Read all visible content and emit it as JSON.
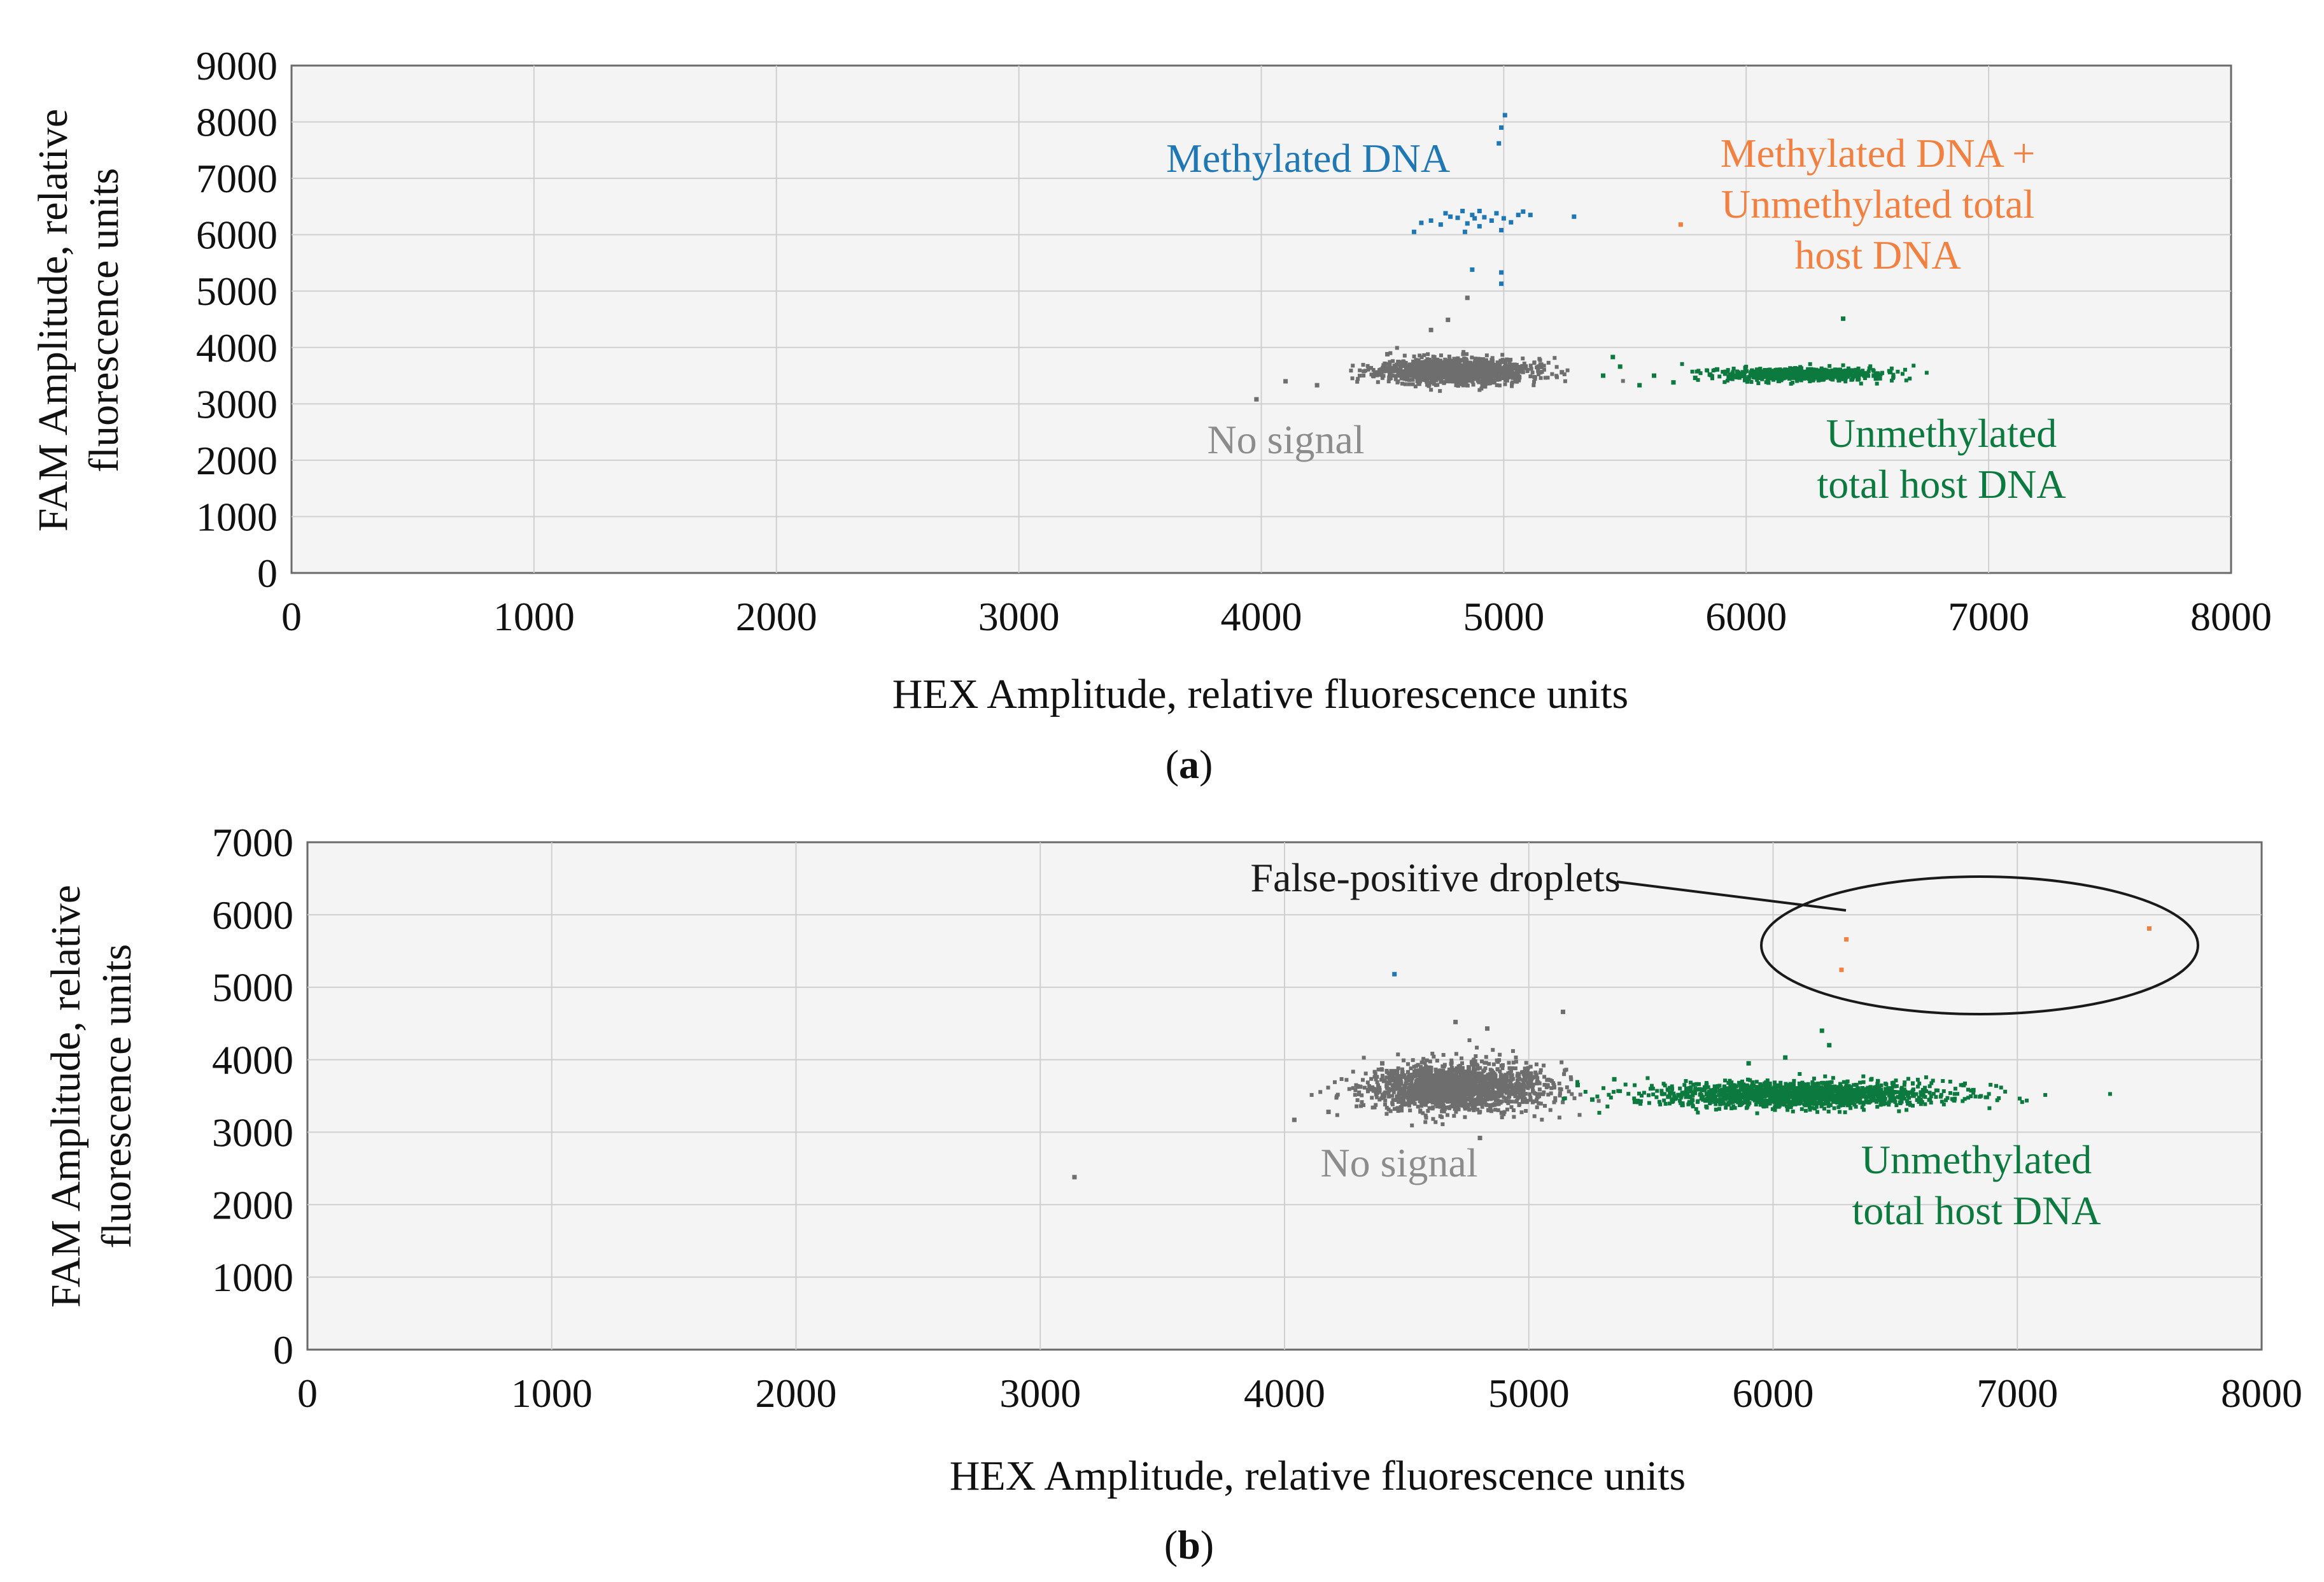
{
  "chart_data": [
    {
      "type": "scatter",
      "panel_label": "a",
      "title": "",
      "xlabel": "HEX Amplitude, relative fluorescence units",
      "ylabel_lines": [
        "FAM Amplitude, relative",
        "fluorescence units"
      ],
      "xlim": [
        0,
        8000
      ],
      "ylim": [
        0,
        9000
      ],
      "x_ticks": [
        0,
        1000,
        2000,
        3000,
        4000,
        5000,
        6000,
        7000,
        8000
      ],
      "y_ticks": [
        0,
        1000,
        2000,
        3000,
        4000,
        5000,
        6000,
        7000,
        8000,
        9000
      ],
      "x_tick_labels": [
        "0",
        "1000",
        "2000",
        "3000",
        "4000",
        "5000",
        "6000",
        "7000",
        "8000"
      ],
      "y_tick_labels": [
        "0",
        "1000",
        "2000",
        "3000",
        "4000",
        "5000",
        "6000",
        "7000",
        "8000",
        "9000"
      ],
      "grid": true,
      "series": [
        {
          "name": "No signal",
          "color": "#6e6e6e",
          "cluster": {
            "cx": 4800,
            "cy": 3580,
            "sx": 150,
            "sy": 110,
            "count": 1400
          },
          "points": [
            [
              3980,
              3080
            ],
            [
              4100,
              3400
            ],
            [
              4230,
              3330
            ],
            [
              5240,
              3560
            ],
            [
              4700,
              4310
            ],
            [
              4770,
              4490
            ],
            [
              4850,
              4880
            ],
            [
              4520,
              3880
            ]
          ]
        },
        {
          "name": "Methylated DNA",
          "color": "#1f77b4",
          "points": [
            [
              5005,
              8120
            ],
            [
              4990,
              7900
            ],
            [
              4980,
              7620
            ],
            [
              4630,
              6050
            ],
            [
              4700,
              6250
            ],
            [
              4740,
              6180
            ],
            [
              4780,
              6320
            ],
            [
              4810,
              6300
            ],
            [
              4830,
              6420
            ],
            [
              4850,
              6200
            ],
            [
              4870,
              6350
            ],
            [
              4880,
              6290
            ],
            [
              4900,
              6420
            ],
            [
              4920,
              6310
            ],
            [
              4950,
              6250
            ],
            [
              4970,
              6380
            ],
            [
              5000,
              6290
            ],
            [
              5030,
              6220
            ],
            [
              5060,
              6350
            ],
            [
              5080,
              6410
            ],
            [
              4840,
              6050
            ],
            [
              4760,
              6380
            ],
            [
              4660,
              6210
            ],
            [
              4900,
              6150
            ],
            [
              4990,
              6080
            ],
            [
              5110,
              6350
            ],
            [
              5290,
              6320
            ],
            [
              4870,
              5380
            ],
            [
              4990,
              5330
            ],
            [
              4990,
              5130
            ]
          ]
        },
        {
          "name": "Methylated DNA + Unmethylated total host DNA",
          "color": "#f28040",
          "points": [
            [
              5730,
              6180
            ]
          ]
        },
        {
          "name": "Unmethylated total host DNA",
          "color": "#0c7a3e",
          "cluster": {
            "cx": 6230,
            "cy": 3520,
            "sx": 160,
            "sy": 55,
            "count": 800
          },
          "points": [
            [
              5410,
              3500
            ],
            [
              5450,
              3830
            ],
            [
              5480,
              3660
            ],
            [
              5560,
              3330
            ],
            [
              5620,
              3500
            ],
            [
              5700,
              3380
            ],
            [
              5790,
              3460
            ],
            [
              5850,
              3520
            ],
            [
              5880,
              3610
            ],
            [
              6400,
              4510
            ]
          ]
        }
      ],
      "annotations": [
        {
          "text": "Methylated DNA",
          "color": "#1f77b4"
        },
        {
          "lines": [
            "Methylated DNA +",
            "Unmethylated total",
            "host DNA"
          ],
          "color": "#f28040"
        },
        {
          "text": "No signal",
          "color": "#8c8c8c"
        },
        {
          "lines": [
            "Unmethylated",
            "total host DNA"
          ],
          "color": "#0c7a3e"
        }
      ]
    },
    {
      "type": "scatter",
      "panel_label": "b",
      "title": "",
      "xlabel": "HEX Amplitude, relative fluorescence units",
      "ylabel_lines": [
        "FAM Amplitude, relative",
        "fluorescence units"
      ],
      "xlim": [
        0,
        8000
      ],
      "ylim": [
        0,
        7000
      ],
      "x_ticks": [
        0,
        1000,
        2000,
        3000,
        4000,
        5000,
        6000,
        7000,
        8000
      ],
      "y_ticks": [
        0,
        1000,
        2000,
        3000,
        4000,
        5000,
        6000,
        7000
      ],
      "x_tick_labels": [
        "0",
        "1000",
        "2000",
        "3000",
        "4000",
        "5000",
        "6000",
        "7000",
        "8000"
      ],
      "y_tick_labels": [
        "0",
        "1000",
        "2000",
        "3000",
        "4000",
        "5000",
        "6000",
        "7000"
      ],
      "grid": true,
      "series": [
        {
          "name": "No signal",
          "color": "#6e6e6e",
          "cluster": {
            "cx": 4700,
            "cy": 3620,
            "sx": 180,
            "sy": 160,
            "count": 1800
          },
          "points": [
            [
              3140,
              2380
            ],
            [
              4040,
              3170
            ],
            [
              4180,
              3280
            ],
            [
              4800,
              2920
            ],
            [
              4830,
              4430
            ],
            [
              4700,
              4520
            ],
            [
              5140,
              4660
            ],
            [
              4400,
              3950
            ]
          ]
        },
        {
          "name": "Methylated DNA",
          "color": "#1f77b4",
          "points": [
            [
              4450,
              5180
            ]
          ]
        },
        {
          "name": "False-positive droplets",
          "color": "#f28040",
          "points": [
            [
              6300,
              5660
            ],
            [
              6280,
              5240
            ],
            [
              7540,
              5810
            ]
          ]
        },
        {
          "name": "Unmethylated total host DNA",
          "color": "#0c7a3e",
          "cluster": {
            "cx": 6100,
            "cy": 3520,
            "sx": 300,
            "sy": 85,
            "count": 1500
          },
          "points": [
            [
              5200,
              3650
            ],
            [
              5260,
              3450
            ],
            [
              5350,
              3730
            ],
            [
              6050,
              4030
            ],
            [
              6200,
              4400
            ],
            [
              6230,
              4200
            ],
            [
              6820,
              3580
            ],
            [
              6780,
              3650
            ],
            [
              5900,
              3950
            ]
          ]
        }
      ],
      "annotations": [
        {
          "text": "False-positive droplets",
          "color": "#1a1a1a",
          "ellipse_center": [
            6800,
            5550
          ],
          "ellipse_radius": [
            880,
            950
          ]
        },
        {
          "text": "No signal",
          "color": "#8c8c8c"
        },
        {
          "lines": [
            "Unmethylated",
            "total host DNA"
          ],
          "color": "#0c7a3e"
        }
      ]
    }
  ]
}
